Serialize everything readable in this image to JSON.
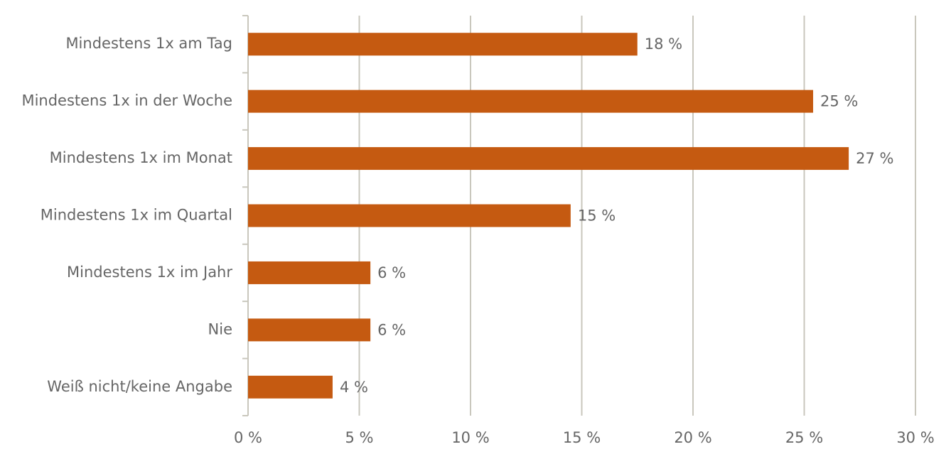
{
  "chart_data": {
    "type": "hbar",
    "categories": [
      "Mindestens 1x am Tag",
      "Mindestens 1x in der Woche",
      "Mindestens 1x im Monat",
      "Mindestens 1x im Quartal",
      "Mindestens 1x im Jahr",
      "Nie",
      "Weiß nicht/keine Angabe"
    ],
    "values": [
      17.5,
      25.4,
      27.0,
      14.5,
      5.5,
      5.5,
      3.8
    ],
    "value_labels": [
      "18 %",
      "25 %",
      "27 %",
      "15 %",
      "6 %",
      "6 %",
      "4 %"
    ],
    "color": "#c55a11",
    "xlim": [
      0,
      30
    ],
    "xticks": [
      {
        "value": 0,
        "label": "0 %"
      },
      {
        "value": 5,
        "label": "5 %"
      },
      {
        "value": 10,
        "label": "10 %"
      },
      {
        "value": 15,
        "label": "15 %"
      },
      {
        "value": 20,
        "label": "20 %"
      },
      {
        "value": 25,
        "label": "25 %"
      },
      {
        "value": 30,
        "label": "30 %"
      }
    ],
    "grid": true
  }
}
